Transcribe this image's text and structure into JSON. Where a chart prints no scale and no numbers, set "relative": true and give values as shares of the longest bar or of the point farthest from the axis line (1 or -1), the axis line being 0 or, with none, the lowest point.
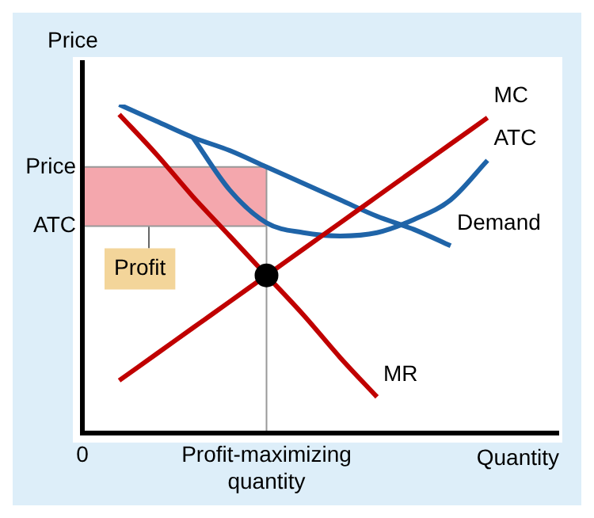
{
  "chart_data": {
    "type": "line",
    "relative": true,
    "xlabel": "Quantity",
    "ylabel": "Price",
    "categories": [
      "0",
      null,
      null,
      null,
      null,
      "Profit-maximizing quantity",
      null,
      null,
      null,
      null,
      null,
      null,
      null
    ],
    "series": [
      {
        "name": "MC",
        "color": "#c00000",
        "values": [
          null,
          0.16,
          0.24,
          0.32,
          0.4,
          0.48,
          0.56,
          0.64,
          0.72,
          0.8,
          0.88,
          0.96,
          null
        ]
      },
      {
        "name": "ATC",
        "color": "#1f64a8",
        "values": [
          null,
          null,
          null,
          0.9,
          0.74,
          0.64,
          0.61,
          0.6,
          0.61,
          0.65,
          0.71,
          0.83,
          null
        ]
      },
      {
        "name": "Demand",
        "color": "#1f64a8",
        "values": [
          null,
          1.0,
          0.95,
          0.9,
          0.86,
          0.81,
          0.76,
          0.71,
          0.66,
          0.62,
          0.57,
          null,
          null
        ]
      },
      {
        "name": "MR",
        "color": "#c00000",
        "values": [
          null,
          0.97,
          0.85,
          0.72,
          0.6,
          0.48,
          0.36,
          0.23,
          0.11,
          null,
          null,
          null,
          null
        ]
      },
      {
        "type": "scatter",
        "color": "#000000",
        "marker": "circle",
        "x": [
          "Profit-maximizing quantity"
        ],
        "values": [
          0.48
        ]
      }
    ],
    "ref_lines": [
      {
        "axis": "y",
        "value": 0.81,
        "label": "Price",
        "color": "#999999"
      },
      {
        "axis": "y",
        "value": 0.63,
        "label": "ATC",
        "color": "#999999"
      },
      {
        "axis": "x",
        "value": "Profit-maximizing quantity",
        "color": "#999999"
      }
    ],
    "bands": [
      {
        "axis": "y",
        "from": 0.63,
        "to": 0.81,
        "label": "Profit",
        "color": "#f4a7ad"
      }
    ],
    "marker": "none",
    "grid": false,
    "legend": false
  }
}
